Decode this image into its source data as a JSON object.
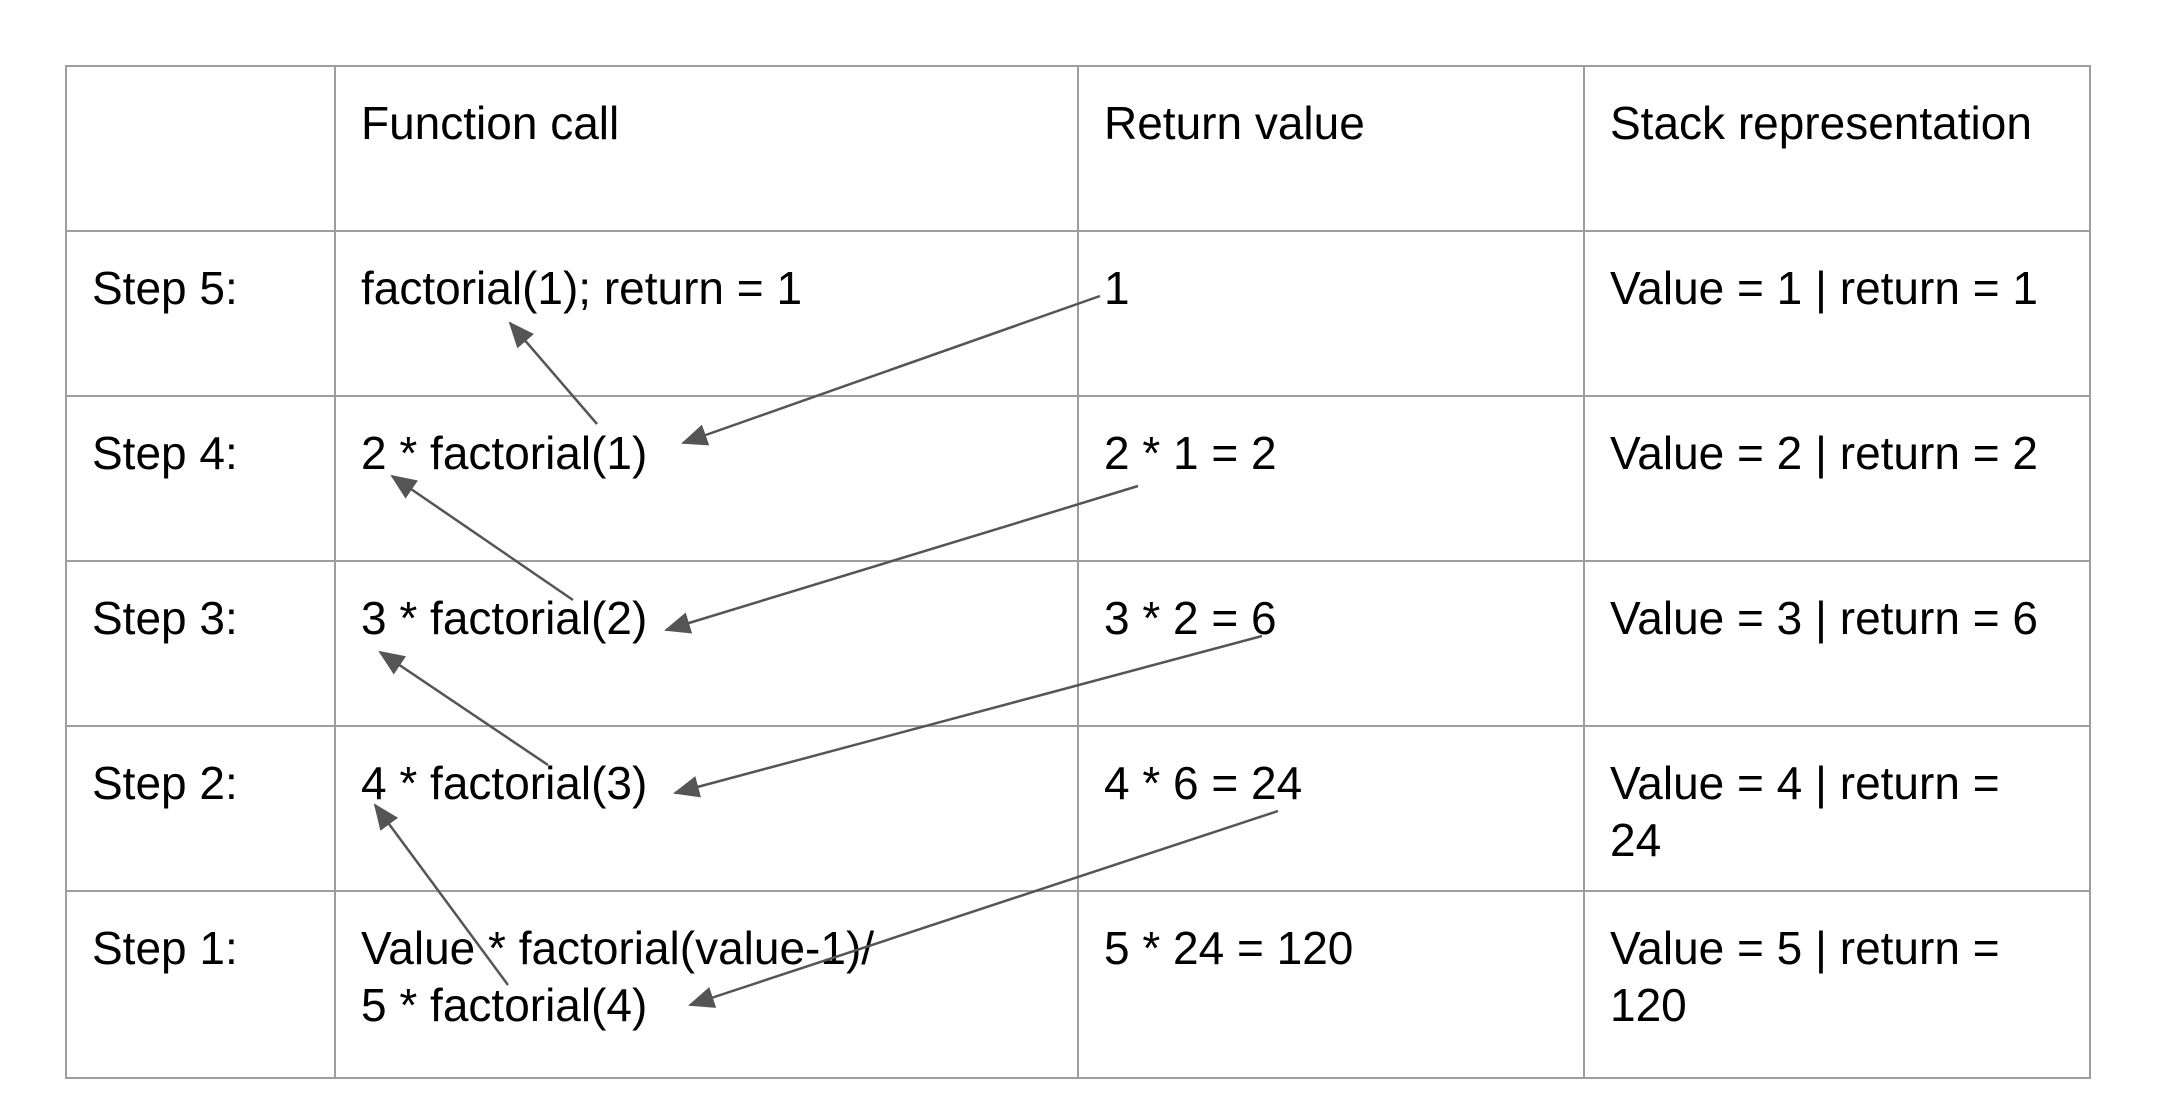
{
  "header": {
    "col0": "",
    "col1": "Function call",
    "col2": "Return value",
    "col3": "Stack representation"
  },
  "rows": [
    {
      "step": "Step 5:",
      "call": [
        "factorial(1); return = 1"
      ],
      "ret": "1",
      "stack": [
        "Value = 1 | return = 1"
      ]
    },
    {
      "step": "Step 4:",
      "call": [
        "2 * factorial(1)"
      ],
      "ret": "2 * 1 = 2",
      "stack": [
        "Value = 2 | return = 2"
      ]
    },
    {
      "step": "Step 3:",
      "call": [
        "3 * factorial(2)"
      ],
      "ret": "3 * 2 = 6",
      "stack": [
        "Value = 3 | return = 6"
      ]
    },
    {
      "step": "Step 2:",
      "call": [
        "4 * factorial(3)"
      ],
      "ret": "4 * 6 = 24",
      "stack": [
        "Value = 4 | return =",
        "24"
      ]
    },
    {
      "step": "Step 1:",
      "call": [
        "Value * factorial(value-1)/",
        "5 * factorial(4)"
      ],
      "ret": "5 * 24 = 120",
      "stack": [
        "Value = 5 | return =",
        "120"
      ]
    }
  ],
  "colors": {
    "border": "#9e9e9e",
    "arrow": "#555555",
    "text": "#000000"
  }
}
